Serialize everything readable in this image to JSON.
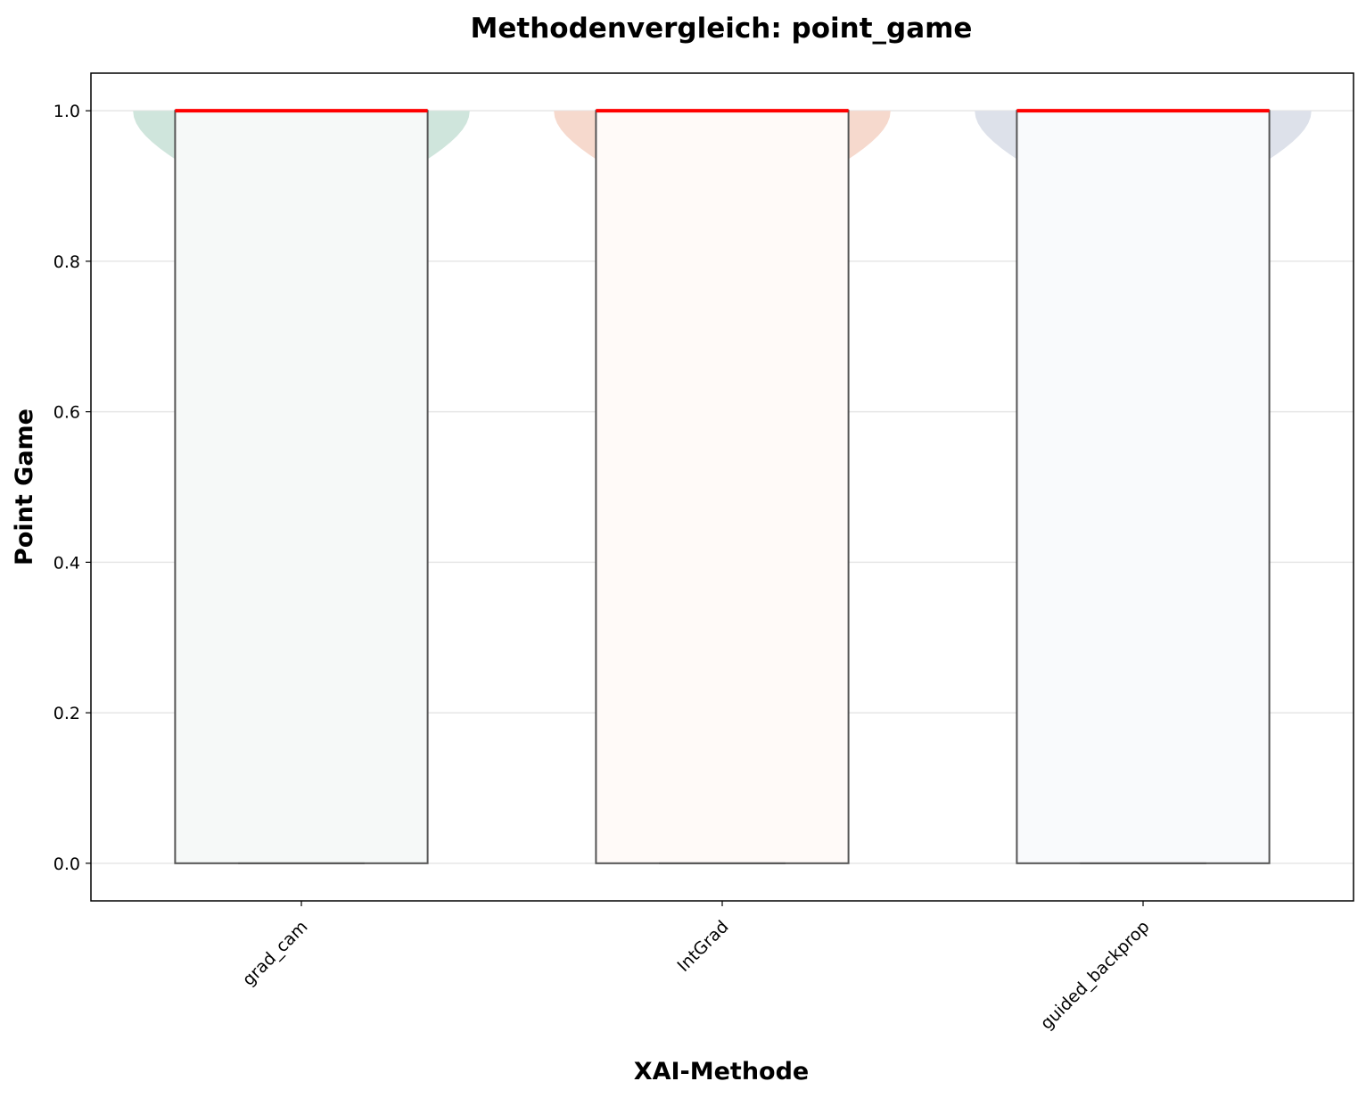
{
  "chart_data": {
    "type": "violin+box",
    "title": "Methodenvergleich: point_game",
    "xlabel": "XAI-Methode",
    "ylabel": "Point Game",
    "ylim": [
      -0.05,
      1.05
    ],
    "yticks": [
      "0.0",
      "0.2",
      "0.4",
      "0.6",
      "0.8",
      "1.0"
    ],
    "ytick_values": [
      0.0,
      0.2,
      0.4,
      0.6,
      0.8,
      1.0
    ],
    "grid": "horizontal",
    "categories": [
      "grad_cam",
      "IntGrad",
      "guided_backprop"
    ],
    "colors": [
      "#cfe5dc",
      "#f6d9cd",
      "#dde1ea"
    ],
    "box_colors": [
      "#f6f9f8",
      "#fffaf8",
      "#f9fafc"
    ],
    "median_color": "#ff0000",
    "box_edge_color": "#555555",
    "series": [
      {
        "q1": 0.0,
        "median": 1.0,
        "q3": 1.0,
        "min": 0.0,
        "max": 1.0,
        "density_top": 1.0,
        "density_bottom": 0.28
      },
      {
        "q1": 0.0,
        "median": 1.0,
        "q3": 1.0,
        "min": 0.0,
        "max": 1.0,
        "density_top": 1.0,
        "density_bottom": 0.45
      },
      {
        "q1": 0.0,
        "median": 1.0,
        "q3": 1.0,
        "min": 0.0,
        "max": 1.0,
        "density_top": 1.0,
        "density_bottom": 0.28
      }
    ]
  }
}
